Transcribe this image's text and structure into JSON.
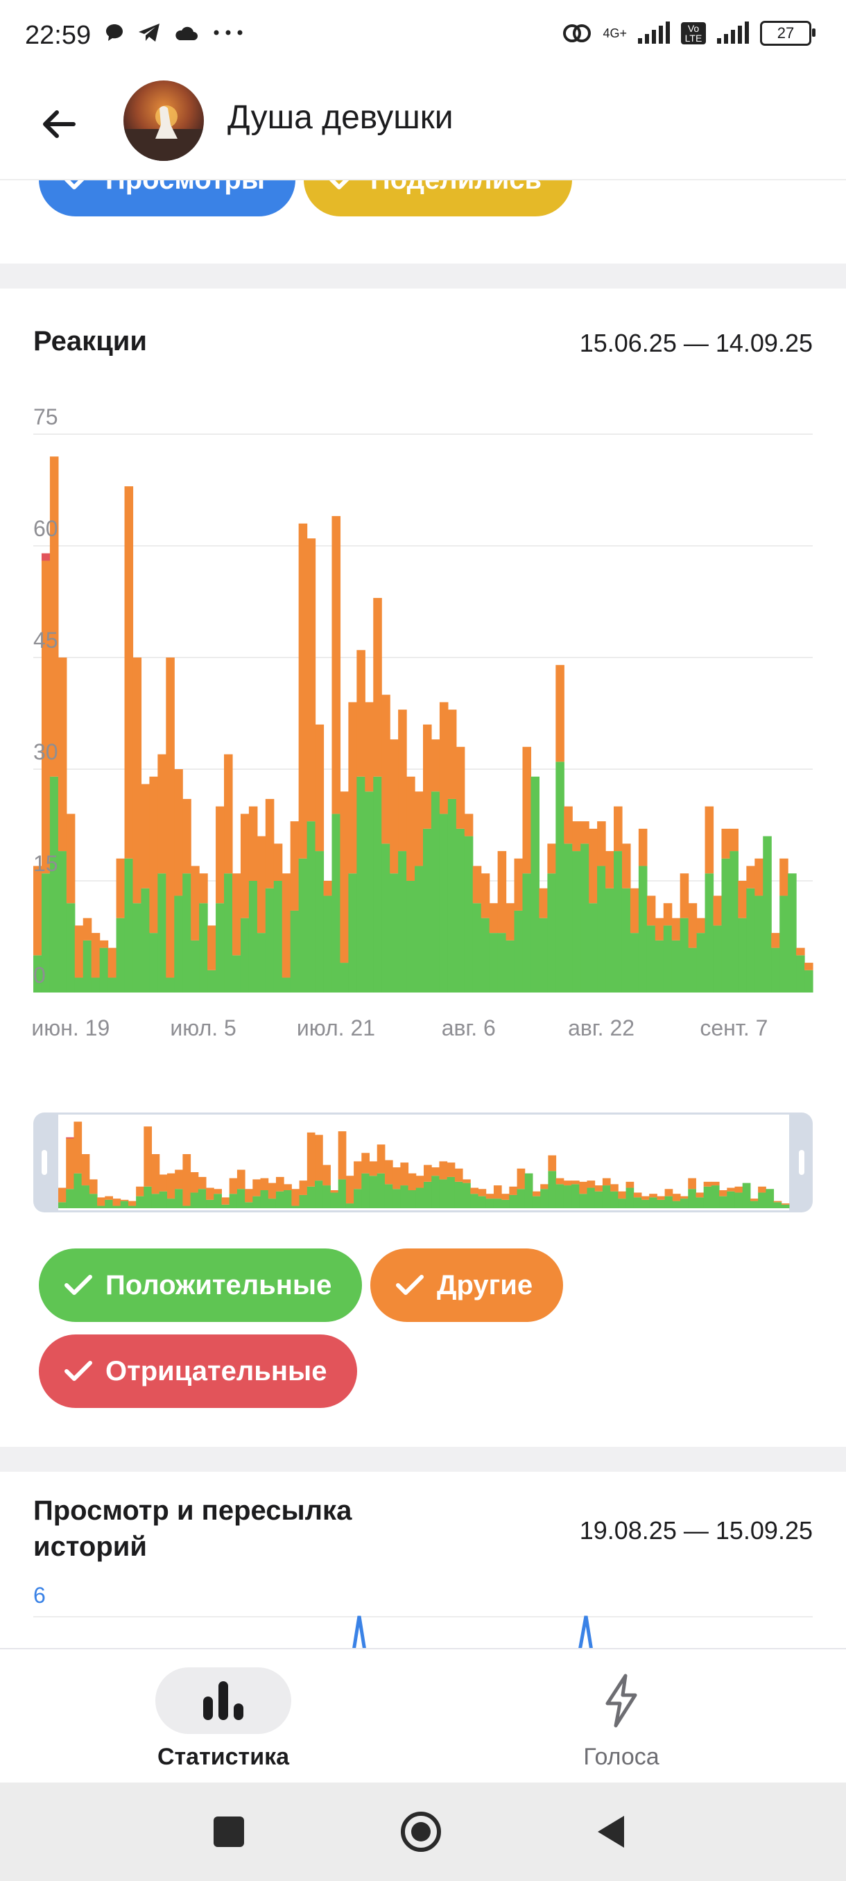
{
  "status": {
    "time": "22:59",
    "network": "4G+",
    "volte": "Vo LTE",
    "battery": "27"
  },
  "header": {
    "title": "Душа девушки"
  },
  "top_filters": [
    "Просмотры",
    "Поделились"
  ],
  "reactions": {
    "title": "Реакции",
    "range": "15.06.25 — 14.09.25",
    "filters": [
      {
        "label": "Положительные",
        "color": "#5fc553"
      },
      {
        "label": "Другие",
        "color": "#f28a37"
      },
      {
        "label": "Отрицательные",
        "color": "#e2545a"
      }
    ]
  },
  "stories": {
    "title_line1": "Просмотр и пересылка",
    "title_line2": "историй",
    "range": "19.08.25 — 15.09.25",
    "y_top": "6"
  },
  "nav": {
    "stats": "Статистика",
    "votes": "Голоса"
  },
  "chart_data": {
    "type": "bar",
    "stacked": true,
    "title": "Реакции",
    "y_ticks": [
      0,
      15,
      30,
      45,
      60,
      75
    ],
    "ylim": [
      0,
      75
    ],
    "x_tick_labels": [
      "июн. 19",
      "июл. 5",
      "июл. 21",
      "авг. 6",
      "авг. 22",
      "сент. 7"
    ],
    "x_tick_index": [
      4,
      20,
      36,
      52,
      68,
      84
    ],
    "series": [
      {
        "name": "Положительные",
        "color": "#5fc553",
        "values": [
          5,
          16,
          29,
          19,
          12,
          2,
          7,
          2,
          6,
          2,
          10,
          18,
          12,
          14,
          8,
          16,
          2,
          13,
          16,
          7,
          12,
          3,
          12,
          16,
          5,
          10,
          15,
          8,
          14,
          15,
          2,
          11,
          18,
          23,
          19,
          13,
          24,
          4,
          16,
          29,
          27,
          29,
          20,
          16,
          19,
          15,
          17,
          22,
          27,
          24,
          26,
          22,
          21,
          12,
          10,
          8,
          8,
          7,
          11,
          16,
          29,
          10,
          16,
          31,
          20,
          19,
          20,
          12,
          17,
          14,
          19,
          14,
          8,
          17,
          9,
          7,
          9,
          7,
          10,
          6,
          8,
          16,
          9,
          18,
          19,
          10,
          14,
          13,
          21,
          6,
          13,
          16,
          5,
          3
        ]
      },
      {
        "name": "Другие",
        "color": "#f28a37",
        "values": [
          12,
          42,
          43,
          26,
          12,
          7,
          3,
          6,
          1,
          4,
          8,
          50,
          33,
          14,
          21,
          16,
          43,
          17,
          10,
          10,
          4,
          6,
          13,
          16,
          11,
          14,
          10,
          13,
          12,
          5,
          14,
          12,
          45,
          38,
          17,
          2,
          40,
          23,
          23,
          17,
          12,
          24,
          20,
          18,
          19,
          14,
          10,
          14,
          7,
          15,
          12,
          11,
          3,
          5,
          6,
          4,
          11,
          5,
          7,
          17,
          0,
          4,
          4,
          13,
          5,
          4,
          3,
          10,
          6,
          5,
          6,
          6,
          6,
          5,
          4,
          3,
          3,
          3,
          6,
          6,
          2,
          9,
          4,
          4,
          3,
          5,
          3,
          5,
          0,
          2,
          5,
          0,
          1,
          1
        ]
      },
      {
        "name": "Отрицательные",
        "color": "#e2545a",
        "values": [
          0,
          1,
          0,
          0,
          0,
          0,
          0,
          0,
          0,
          0,
          0,
          0,
          0,
          0,
          0,
          0,
          0,
          0,
          0,
          0,
          0,
          0,
          0,
          0,
          0,
          0,
          0,
          0,
          0,
          0,
          0,
          0,
          0,
          0,
          0,
          0,
          0,
          0,
          0,
          0,
          0,
          0,
          0,
          0,
          0,
          0,
          0,
          0,
          0,
          0,
          0,
          0,
          0,
          0,
          0,
          0,
          0,
          0,
          0,
          0,
          0,
          0,
          0,
          0,
          0,
          0,
          0,
          0,
          0,
          0,
          0,
          0,
          0,
          0,
          0,
          0,
          0,
          0,
          0,
          0,
          0,
          0,
          0,
          0,
          0,
          0,
          0,
          0,
          0,
          0,
          0,
          0,
          0,
          0
        ]
      }
    ]
  }
}
